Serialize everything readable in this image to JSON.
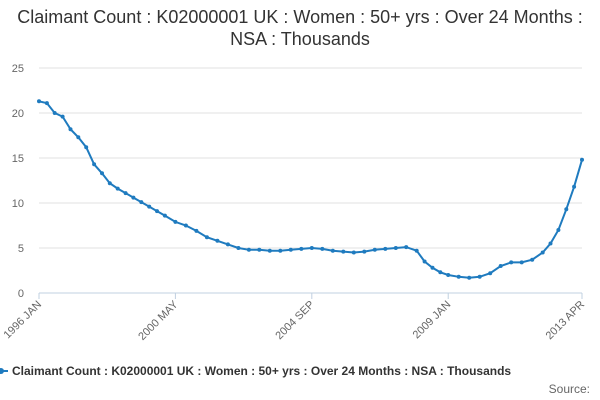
{
  "chart_data": {
    "type": "line",
    "title": "Claimant Count : K02000001 UK : Women : 50+ yrs : Over 24 Months : NSA : Thousands",
    "ylim": [
      0,
      25
    ],
    "yticks": [
      "0",
      "5",
      "10",
      "15",
      "20",
      "25"
    ],
    "xticks": [
      "1996 JAN",
      "2000 MAY",
      "2004 SEP",
      "2009 JAN",
      "2013 APR"
    ],
    "grid": "horizontal",
    "legend_position": "bottom",
    "series": [
      {
        "name": "Claimant Count : K02000001 UK : Women : 50+ yrs : Over 24 Months : NSA : Thousands",
        "color": "#1f7bbf",
        "points": [
          [
            "1996-01",
            21.3
          ],
          [
            "1996-04",
            21.1
          ],
          [
            "1996-07",
            20.0
          ],
          [
            "1996-10",
            19.6
          ],
          [
            "1997-01",
            18.2
          ],
          [
            "1997-04",
            17.3
          ],
          [
            "1997-07",
            16.2
          ],
          [
            "1997-10",
            14.3
          ],
          [
            "1998-01",
            13.3
          ],
          [
            "1998-04",
            12.2
          ],
          [
            "1998-07",
            11.6
          ],
          [
            "1998-10",
            11.1
          ],
          [
            "1999-01",
            10.6
          ],
          [
            "1999-04",
            10.1
          ],
          [
            "1999-07",
            9.6
          ],
          [
            "1999-10",
            9.1
          ],
          [
            "2000-01",
            8.6
          ],
          [
            "2000-05",
            7.9
          ],
          [
            "2000-09",
            7.5
          ],
          [
            "2001-01",
            6.9
          ],
          [
            "2001-05",
            6.2
          ],
          [
            "2001-09",
            5.8
          ],
          [
            "2002-01",
            5.4
          ],
          [
            "2002-05",
            5.0
          ],
          [
            "2002-09",
            4.8
          ],
          [
            "2003-01",
            4.8
          ],
          [
            "2003-05",
            4.7
          ],
          [
            "2003-09",
            4.7
          ],
          [
            "2004-01",
            4.8
          ],
          [
            "2004-05",
            4.9
          ],
          [
            "2004-09",
            5.0
          ],
          [
            "2005-01",
            4.9
          ],
          [
            "2005-05",
            4.7
          ],
          [
            "2005-09",
            4.6
          ],
          [
            "2006-01",
            4.5
          ],
          [
            "2006-05",
            4.6
          ],
          [
            "2006-09",
            4.8
          ],
          [
            "2007-01",
            4.9
          ],
          [
            "2007-05",
            5.0
          ],
          [
            "2007-09",
            5.1
          ],
          [
            "2008-01",
            4.7
          ],
          [
            "2008-04",
            3.5
          ],
          [
            "2008-07",
            2.8
          ],
          [
            "2008-10",
            2.3
          ],
          [
            "2009-01",
            2.0
          ],
          [
            "2009-05",
            1.8
          ],
          [
            "2009-09",
            1.7
          ],
          [
            "2010-01",
            1.8
          ],
          [
            "2010-05",
            2.2
          ],
          [
            "2010-09",
            3.0
          ],
          [
            "2011-01",
            3.4
          ],
          [
            "2011-05",
            3.4
          ],
          [
            "2011-09",
            3.7
          ],
          [
            "2012-01",
            4.5
          ],
          [
            "2012-04",
            5.5
          ],
          [
            "2012-07",
            7.0
          ],
          [
            "2012-10",
            9.3
          ],
          [
            "2013-01",
            11.8
          ],
          [
            "2013-04",
            14.8
          ]
        ]
      }
    ]
  },
  "footer": {
    "source_label": "Source:"
  }
}
